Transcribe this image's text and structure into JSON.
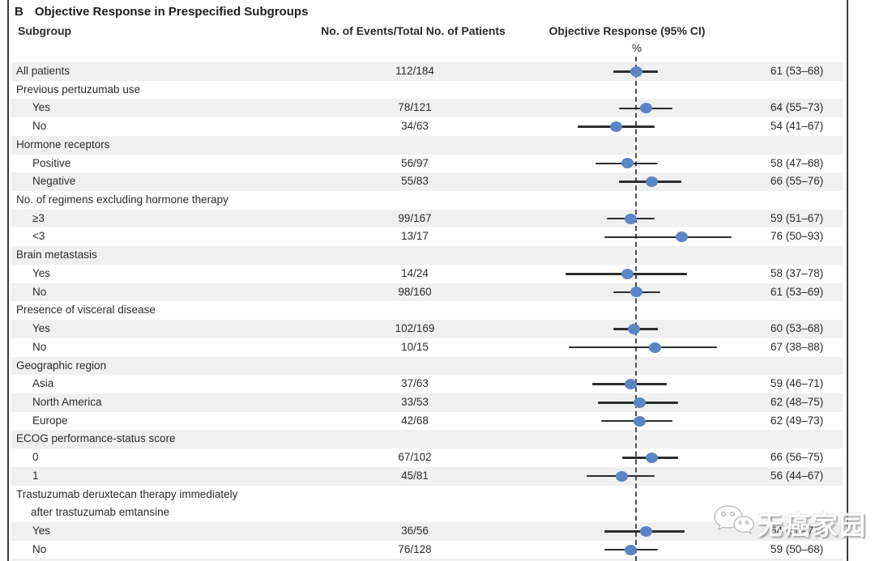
{
  "panel_label": "B",
  "title": "Objective Response in Prespecified Subgroups",
  "columns": {
    "subgroup": "Subgroup",
    "events": "No. of Events/Total No. of Patients",
    "response": "Objective Response (95% CI)",
    "unit": "%"
  },
  "watermark": {
    "icon": "wechat-icon",
    "text": "无癌家园"
  },
  "colors": {
    "dot_blue": "#5b86c6",
    "row_band_gray": "#f0f0f0",
    "ci_line": "#2d2d2d",
    "reference_dash": "#4c4c4c",
    "figure_border": "#3d3d3d"
  },
  "chart_data": {
    "type": "forest",
    "title": "Objective Response in Prespecified Subgroups",
    "x_unit": "%",
    "x_range": [
      0,
      100
    ],
    "reference_line_value": 61,
    "rows": [
      {
        "label": "All patients",
        "indent": 0,
        "events": "112/184",
        "est": 61,
        "lo": 53,
        "hi": 68,
        "display": "61 (53–68)",
        "shaded": true
      },
      {
        "label": "Previous pertuzumab use",
        "indent": 0,
        "header": true,
        "shaded": false
      },
      {
        "label": "Yes",
        "indent": 1,
        "events": "78/121",
        "est": 64,
        "lo": 55,
        "hi": 73,
        "display": "64 (55–73)",
        "shaded": true
      },
      {
        "label": "No",
        "indent": 1,
        "events": "34/63",
        "est": 54,
        "lo": 41,
        "hi": 67,
        "display": "54 (41–67)",
        "shaded": false
      },
      {
        "label": "Hormone receptors",
        "indent": 0,
        "header": true,
        "shaded": true
      },
      {
        "label": "Positive",
        "indent": 1,
        "events": "56/97",
        "est": 58,
        "lo": 47,
        "hi": 68,
        "display": "58 (47–68)",
        "shaded": false
      },
      {
        "label": "Negative",
        "indent": 1,
        "events": "55/83",
        "est": 66,
        "lo": 55,
        "hi": 76,
        "display": "66 (55–76)",
        "shaded": true
      },
      {
        "label": "No. of regimens excluding hormone therapy",
        "indent": 0,
        "header": true,
        "shaded": false
      },
      {
        "label": "≥3",
        "indent": 1,
        "events": "99/167",
        "est": 59,
        "lo": 51,
        "hi": 67,
        "display": "59 (51–67)",
        "shaded": true
      },
      {
        "label": "<3",
        "indent": 1,
        "events": "13/17",
        "est": 76,
        "lo": 50,
        "hi": 93,
        "display": "76 (50–93)",
        "shaded": false
      },
      {
        "label": "Brain metastasis",
        "indent": 0,
        "header": true,
        "shaded": true
      },
      {
        "label": "Yes",
        "indent": 1,
        "events": "14/24",
        "est": 58,
        "lo": 37,
        "hi": 78,
        "display": "58 (37–78)",
        "shaded": false
      },
      {
        "label": "No",
        "indent": 1,
        "events": "98/160",
        "est": 61,
        "lo": 53,
        "hi": 69,
        "display": "61 (53–69)",
        "shaded": true
      },
      {
        "label": "Presence of visceral disease",
        "indent": 0,
        "header": true,
        "shaded": false
      },
      {
        "label": "Yes",
        "indent": 1,
        "events": "102/169",
        "est": 60,
        "lo": 53,
        "hi": 68,
        "display": "60 (53–68)",
        "shaded": true
      },
      {
        "label": "No",
        "indent": 1,
        "events": "10/15",
        "est": 67,
        "lo": 38,
        "hi": 88,
        "display": "67 (38–88)",
        "shaded": false
      },
      {
        "label": "Geographic region",
        "indent": 0,
        "header": true,
        "shaded": true
      },
      {
        "label": "Asia",
        "indent": 1,
        "events": "37/63",
        "est": 59,
        "lo": 46,
        "hi": 71,
        "display": "59 (46–71)",
        "shaded": false
      },
      {
        "label": "North America",
        "indent": 1,
        "events": "33/53",
        "est": 62,
        "lo": 48,
        "hi": 75,
        "display": "62 (48–75)",
        "shaded": true
      },
      {
        "label": "Europe",
        "indent": 1,
        "events": "42/68",
        "est": 62,
        "lo": 49,
        "hi": 73,
        "display": "62 (49–73)",
        "shaded": false
      },
      {
        "label": "ECOG performance-status score",
        "indent": 0,
        "header": true,
        "shaded": true
      },
      {
        "label": "0",
        "indent": 1,
        "events": "67/102",
        "est": 66,
        "lo": 56,
        "hi": 75,
        "display": "66 (56–75)",
        "shaded": false
      },
      {
        "label": "1",
        "indent": 1,
        "events": "45/81",
        "est": 56,
        "lo": 44,
        "hi": 67,
        "display": "56 (44–67)",
        "shaded": true
      },
      {
        "label": "Trastuzumab deruxtecan therapy immediately",
        "indent": 0,
        "header": true,
        "shaded": false
      },
      {
        "label": "after trastuzumab emtansine",
        "indent": 1,
        "header": true,
        "continuation": true,
        "shaded": false
      },
      {
        "label": "Yes",
        "indent": 1,
        "events": "36/56",
        "est": 64,
        "lo": 50,
        "hi": 77,
        "display": "64 (50–77)",
        "shaded": true
      },
      {
        "label": "No",
        "indent": 1,
        "events": "76/128",
        "est": 59,
        "lo": 50,
        "hi": 68,
        "display": "59 (50–68)",
        "shaded": false
      },
      {
        "label": "",
        "indent": 0,
        "shaded": true,
        "partial": true
      }
    ]
  }
}
